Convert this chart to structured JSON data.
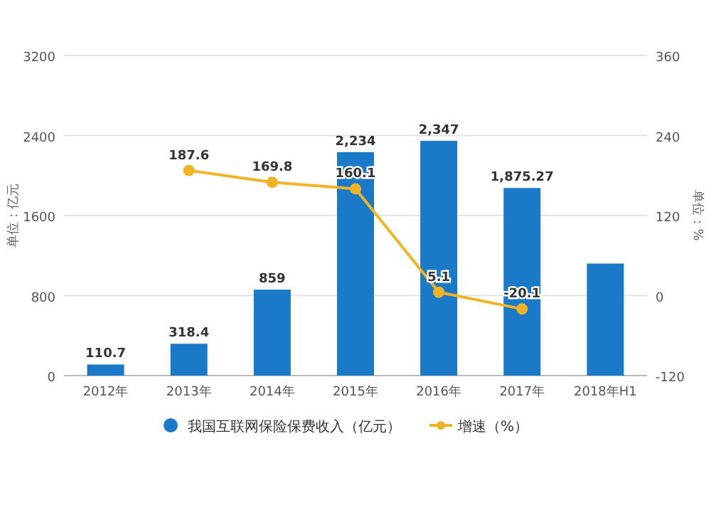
{
  "chart_data": {
    "type": "bar",
    "categories": [
      "2012年",
      "2013年",
      "2014年",
      "2015年",
      "2016年",
      "2017年",
      "2018年H1"
    ],
    "ylabel": "单位：亿元",
    "y2label": "单位：%",
    "series": [
      {
        "name": "我国互联网保险保费收入（亿元）",
        "color": "#1a7ac7",
        "values": [
          110.7,
          318.4,
          859,
          2234,
          2347,
          1875.27,
          1120
        ],
        "value_labels": [
          "110.7",
          "318.4",
          "859",
          "2,234",
          "2,347",
          "1,875.27",
          null
        ]
      },
      {
        "name": "增速（%）",
        "type": "line",
        "axis": "y2",
        "color": "#f0b323",
        "marker": "circle",
        "values": [
          null,
          187.6,
          169.8,
          160.1,
          5.1,
          -20.1,
          null
        ],
        "value_labels": [
          null,
          "187.6",
          "169.8",
          "160.1",
          "5.1",
          "-20.1",
          null
        ]
      }
    ],
    "ylim": [
      0,
      3200
    ],
    "yticks": [
      0,
      800,
      1600,
      2400,
      3200
    ],
    "y2lim": [
      -120,
      360
    ],
    "y2ticks": [
      -120,
      0,
      120,
      240,
      360
    ],
    "grid": "y",
    "legend": "bottom"
  }
}
